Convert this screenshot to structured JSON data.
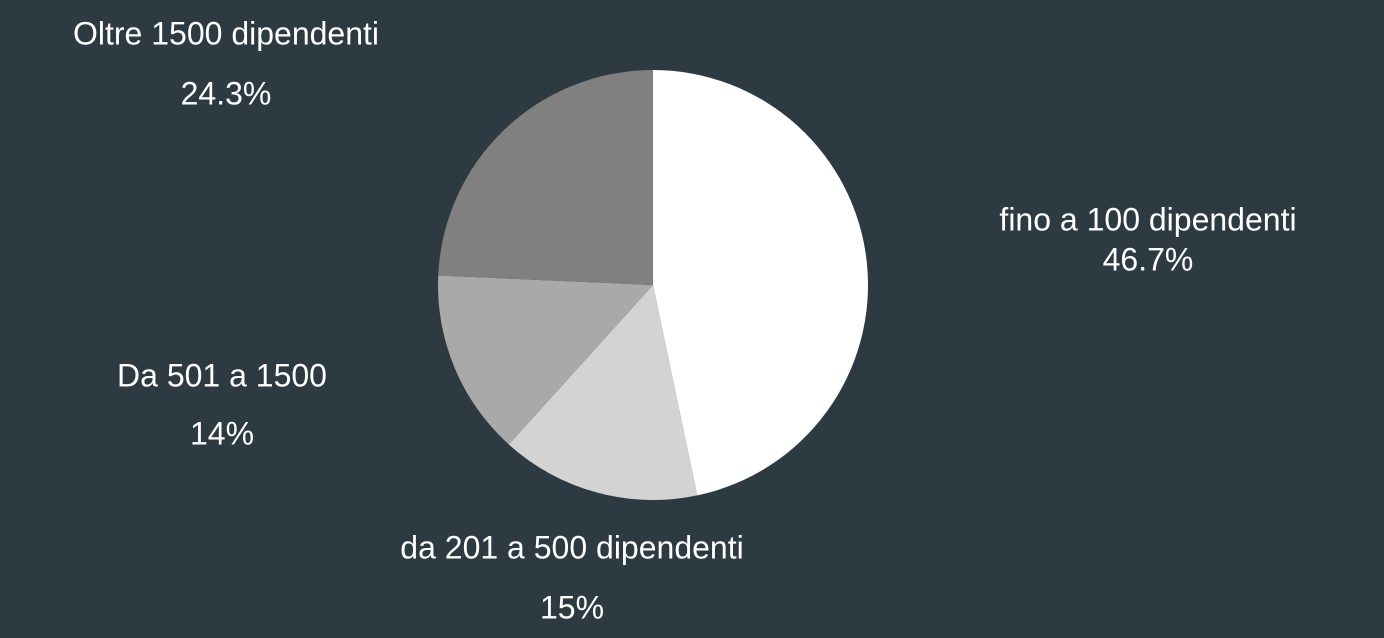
{
  "chart_data": {
    "type": "pie",
    "categories": [
      "fino a 100 dipendenti",
      "da 201 a 500 dipendenti",
      "Da 501 a 1500",
      "Oltre 1500 dipendenti"
    ],
    "values": [
      46.7,
      15,
      14,
      24.3
    ],
    "value_labels": [
      "46.7%",
      "15%",
      "14%",
      "24.3%"
    ],
    "colors": [
      "#ffffff",
      "#d3d3d3",
      "#a9a9a9",
      "#808080"
    ]
  }
}
